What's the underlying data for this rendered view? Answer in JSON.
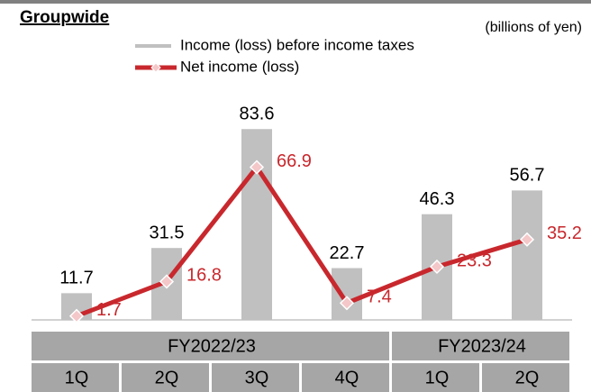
{
  "chart_data": {
    "type": "bar_line",
    "title": "Groupwide",
    "subtitle": "(billions of yen)",
    "categories": [
      "1Q",
      "2Q",
      "3Q",
      "4Q",
      "1Q",
      "2Q"
    ],
    "category_groups": [
      {
        "label": "FY2022/23",
        "size": 4
      },
      {
        "label": "FY2023/24",
        "size": 2
      }
    ],
    "ylim": [
      0,
      90
    ],
    "legend": "top",
    "series": [
      {
        "name": "Income (loss) before income taxes",
        "kind": "bar",
        "color": "#c0c0c0",
        "values": [
          11.7,
          31.5,
          83.6,
          22.7,
          46.3,
          56.7
        ]
      },
      {
        "name": "Net income (loss)",
        "kind": "line",
        "color": "#c8282d",
        "values": [
          1.7,
          16.8,
          66.9,
          7.4,
          23.3,
          35.2
        ]
      }
    ]
  }
}
